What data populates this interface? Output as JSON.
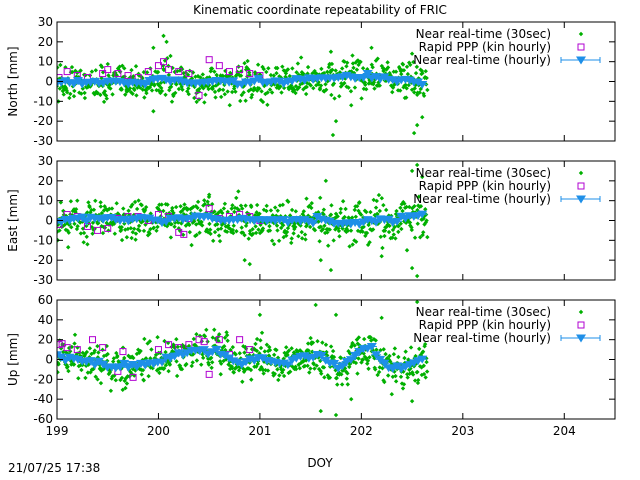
{
  "title": "Kinematic coordinate repeatability of FRIC",
  "timestamp": "21/07/25 17:38",
  "colors": {
    "nrt30": "#00b000",
    "rapid": "#b000d0",
    "nrt_hourly": "#1e8fe8"
  },
  "chart_data": [
    {
      "type": "scatter",
      "ylabel": "North [mm]",
      "xlim": [
        199,
        204.5
      ],
      "ylim": [
        -30,
        30
      ],
      "yticks": [
        -30,
        -20,
        -10,
        0,
        10,
        20,
        30
      ],
      "grid": false,
      "legend_position": "top-right",
      "series": [
        {
          "name": "Near real-time (30sec)",
          "marker": "diamond",
          "x_range": [
            199.0,
            202.65
          ],
          "spread": 4.5,
          "points": [
            [
              199.95,
              17
            ],
            [
              200.05,
              23
            ],
            [
              200.08,
              20
            ],
            [
              201.7,
              15
            ],
            [
              202.1,
              17
            ],
            [
              202.5,
              14
            ],
            [
              201.72,
              -27
            ],
            [
              202.52,
              -26
            ],
            [
              202.55,
              -22
            ],
            [
              201.75,
              -20
            ],
            [
              202.6,
              -18
            ],
            [
              199.95,
              -15
            ],
            [
              200.4,
              -9
            ],
            [
              201.9,
              -12
            ]
          ]
        },
        {
          "name": "Rapid PPP (kin hourly)",
          "marker": "open-square",
          "points": [
            [
              199.02,
              2
            ],
            [
              199.1,
              5
            ],
            [
              199.2,
              3
            ],
            [
              199.3,
              2
            ],
            [
              199.45,
              4
            ],
            [
              199.5,
              6
            ],
            [
              199.6,
              4
            ],
            [
              199.7,
              3
            ],
            [
              199.8,
              2
            ],
            [
              199.9,
              5
            ],
            [
              200.0,
              8
            ],
            [
              200.05,
              10
            ],
            [
              200.1,
              6
            ],
            [
              200.2,
              5
            ],
            [
              200.3,
              4
            ],
            [
              200.4,
              -7
            ],
            [
              200.5,
              11
            ],
            [
              200.6,
              8
            ],
            [
              200.7,
              5
            ],
            [
              200.8,
              6
            ],
            [
              200.9,
              4
            ],
            [
              201.0,
              3
            ]
          ]
        },
        {
          "name": "Near real-time (hourly)",
          "marker": "filled-triangle-down",
          "x_range": [
            199.0,
            202.6
          ],
          "points": [
            [
              199.0,
              -1
            ],
            [
              199.2,
              0
            ],
            [
              199.4,
              -1
            ],
            [
              199.6,
              0
            ],
            [
              199.8,
              -1
            ],
            [
              200.0,
              1
            ],
            [
              200.2,
              0
            ],
            [
              200.4,
              -1
            ],
            [
              200.6,
              0
            ],
            [
              200.8,
              -1
            ],
            [
              201.0,
              0
            ],
            [
              201.2,
              0
            ],
            [
              201.4,
              1
            ],
            [
              201.6,
              1
            ],
            [
              201.8,
              2
            ],
            [
              202.0,
              3
            ],
            [
              202.2,
              2
            ],
            [
              202.4,
              1
            ],
            [
              202.6,
              -1
            ]
          ]
        }
      ]
    },
    {
      "type": "scatter",
      "ylabel": "East [mm]",
      "xlim": [
        199,
        204.5
      ],
      "ylim": [
        -30,
        30
      ],
      "yticks": [
        -30,
        -20,
        -10,
        0,
        10,
        20,
        30
      ],
      "grid": false,
      "legend_position": "top-right",
      "series": [
        {
          "name": "Near real-time (30sec)",
          "marker": "diamond",
          "x_range": [
            199.0,
            202.65
          ],
          "spread": 5,
          "points": [
            [
              202.55,
              28
            ],
            [
              202.5,
              25
            ],
            [
              202.6,
              22
            ],
            [
              201.65,
              20
            ],
            [
              199.2,
              10
            ],
            [
              200.5,
              13
            ],
            [
              202.55,
              -28
            ],
            [
              202.5,
              -24
            ],
            [
              201.7,
              -25
            ],
            [
              200.9,
              -22
            ],
            [
              200.85,
              -20
            ],
            [
              202.2,
              -18
            ],
            [
              202.45,
              -15
            ],
            [
              201.6,
              -20
            ],
            [
              199.3,
              -12
            ]
          ]
        },
        {
          "name": "Rapid PPP (kin hourly)",
          "marker": "open-square",
          "points": [
            [
              199.02,
              -2
            ],
            [
              199.1,
              3
            ],
            [
              199.2,
              2
            ],
            [
              199.3,
              -3
            ],
            [
              199.4,
              -5
            ],
            [
              199.5,
              -4
            ],
            [
              199.6,
              1
            ],
            [
              199.7,
              2
            ],
            [
              199.8,
              2
            ],
            [
              199.9,
              0
            ],
            [
              200.0,
              3
            ],
            [
              200.1,
              2
            ],
            [
              200.2,
              -6
            ],
            [
              200.25,
              -7
            ],
            [
              200.3,
              1
            ],
            [
              200.5,
              6
            ],
            [
              200.6,
              1
            ],
            [
              200.7,
              2
            ],
            [
              200.8,
              3
            ],
            [
              200.9,
              2
            ],
            [
              201.0,
              0
            ]
          ]
        },
        {
          "name": "Near real-time (hourly)",
          "marker": "filled-triangle-down",
          "x_range": [
            199.0,
            202.6
          ],
          "points": [
            [
              199.0,
              -1
            ],
            [
              199.2,
              1
            ],
            [
              199.4,
              1
            ],
            [
              199.6,
              0
            ],
            [
              199.8,
              1
            ],
            [
              200.0,
              0
            ],
            [
              200.2,
              1
            ],
            [
              200.4,
              2
            ],
            [
              200.6,
              0
            ],
            [
              200.8,
              1
            ],
            [
              201.0,
              0
            ],
            [
              201.2,
              0
            ],
            [
              201.4,
              -1
            ],
            [
              201.6,
              1
            ],
            [
              201.8,
              -2
            ],
            [
              202.0,
              -1
            ],
            [
              202.2,
              0
            ],
            [
              202.4,
              1
            ],
            [
              202.6,
              2
            ]
          ]
        }
      ]
    },
    {
      "type": "scatter",
      "ylabel": "Up [mm]",
      "xlabel": "DOY",
      "xlim": [
        199,
        204.5
      ],
      "ylim": [
        -60,
        60
      ],
      "yticks": [
        -60,
        -40,
        -20,
        0,
        20,
        40,
        60
      ],
      "xticks": [
        199,
        200,
        201,
        202,
        203,
        204
      ],
      "grid": false,
      "legend_position": "top-right",
      "series": [
        {
          "name": "Near real-time (30sec)",
          "marker": "diamond",
          "x_range": [
            199.0,
            202.65
          ],
          "spread": 9,
          "points": [
            [
              202.55,
              58
            ],
            [
              201.55,
              55
            ],
            [
              201.75,
              45
            ],
            [
              201.0,
              45
            ],
            [
              202.2,
              42
            ],
            [
              201.6,
              -52
            ],
            [
              201.75,
              -56
            ],
            [
              201.9,
              -40
            ],
            [
              202.5,
              -42
            ],
            [
              202.3,
              -35
            ],
            [
              200.55,
              30
            ],
            [
              199.4,
              -20
            ]
          ]
        },
        {
          "name": "Rapid PPP (kin hourly)",
          "marker": "open-square",
          "points": [
            [
              199.02,
              15
            ],
            [
              199.05,
              16
            ],
            [
              199.1,
              12
            ],
            [
              199.2,
              10
            ],
            [
              199.35,
              20
            ],
            [
              199.45,
              12
            ],
            [
              199.6,
              -12
            ],
            [
              199.65,
              8
            ],
            [
              199.75,
              -18
            ],
            [
              200.0,
              10
            ],
            [
              200.1,
              15
            ],
            [
              200.2,
              12
            ],
            [
              200.3,
              15
            ],
            [
              200.4,
              20
            ],
            [
              200.45,
              18
            ],
            [
              200.5,
              -15
            ],
            [
              200.6,
              20
            ],
            [
              200.7,
              5
            ],
            [
              200.8,
              20
            ],
            [
              200.9,
              10
            ]
          ]
        },
        {
          "name": "Near real-time (hourly)",
          "marker": "filled-triangle-down",
          "x_range": [
            199.0,
            202.6
          ],
          "points": [
            [
              199.0,
              2
            ],
            [
              199.2,
              0
            ],
            [
              199.4,
              -2
            ],
            [
              199.6,
              -8
            ],
            [
              199.8,
              -5
            ],
            [
              200.0,
              -2
            ],
            [
              200.2,
              5
            ],
            [
              200.4,
              10
            ],
            [
              200.6,
              6
            ],
            [
              200.8,
              -5
            ],
            [
              201.0,
              3
            ],
            [
              201.2,
              -5
            ],
            [
              201.4,
              2
            ],
            [
              201.6,
              3
            ],
            [
              201.8,
              -10
            ],
            [
              202.0,
              10
            ],
            [
              202.1,
              12
            ],
            [
              202.2,
              -5
            ],
            [
              202.4,
              -10
            ],
            [
              202.6,
              0
            ]
          ]
        }
      ]
    }
  ]
}
